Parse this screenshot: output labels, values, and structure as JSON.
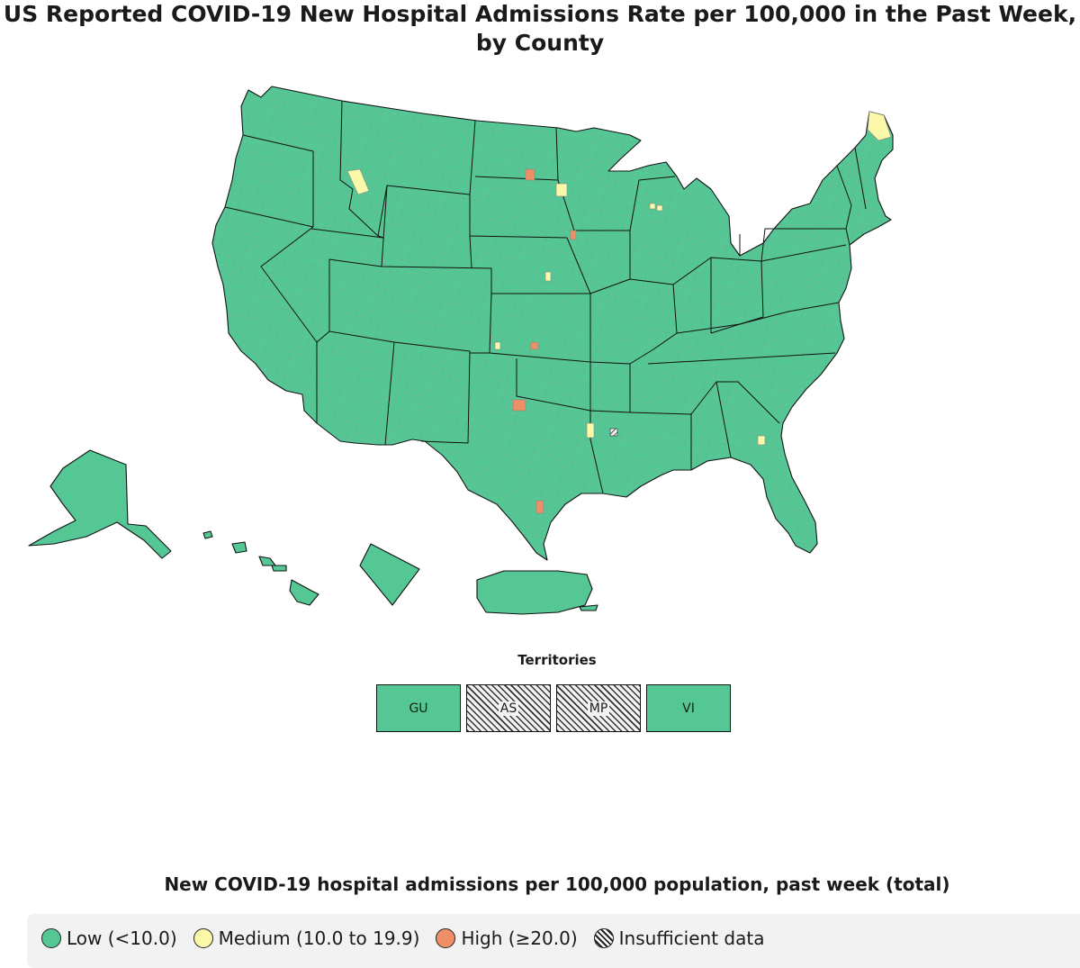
{
  "title": {
    "line1": "US Reported COVID-19 New Hospital Admissions Rate per 100,000 in the Past Week,",
    "line2": "by County"
  },
  "colors": {
    "low": "#54c795",
    "medium": "#fbf8a9",
    "high": "#ee8f67",
    "insufficient_hatch": "#333333",
    "county_border": "#8a8a8a",
    "state_border": "#111111"
  },
  "map": {
    "state_fill": "low",
    "medium_counties": [
      "Maine north",
      "Idaho panhandle",
      "North Dakota east",
      "Wisconsin",
      "Nebraska",
      "Kansas west",
      "Oklahoma/Arkansas",
      "Georgia east"
    ],
    "high_counties": [
      "North Dakota central",
      "Iowa northwest",
      "Kansas central",
      "Texas panhandle",
      "Texas south"
    ],
    "insufficient_counties": [
      "Louisiana north"
    ]
  },
  "territories": {
    "heading": "Territories",
    "items": [
      {
        "label": "GU",
        "level": "low"
      },
      {
        "label": "AS",
        "level": "insufficient"
      },
      {
        "label": "MP",
        "level": "insufficient"
      },
      {
        "label": "VI",
        "level": "low"
      }
    ]
  },
  "legend": {
    "title": "New COVID-19 hospital admissions per 100,000 population, past week (total)",
    "items": [
      {
        "label": "Low (<10.0)",
        "level": "low"
      },
      {
        "label": "Medium (10.0 to 19.9)",
        "level": "medium"
      },
      {
        "label": "High (≥20.0)",
        "level": "high"
      },
      {
        "label": "Insufficient data",
        "level": "insufficient"
      }
    ]
  }
}
